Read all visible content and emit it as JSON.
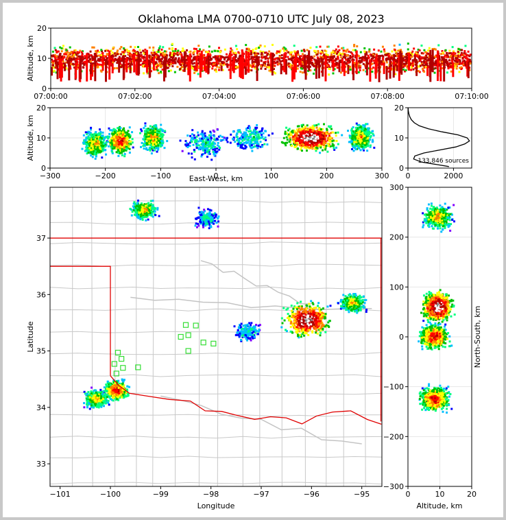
{
  "chart_data": {
    "type": "heatmap",
    "title": "Oklahoma LMA 0700-0710 UTC July 08, 2023",
    "colormap": [
      "#7f00ff",
      "#0000ff",
      "#00bfff",
      "#00ff7f",
      "#00c000",
      "#ffff00",
      "#ff8000",
      "#ff0000",
      "#b00000",
      "#ffffff",
      "#808080"
    ],
    "panels": {
      "time_height": {
        "ylabel": "Altitude, km",
        "yticks": [
          "0",
          "10",
          "20"
        ],
        "xticks": [
          "07:00:00",
          "07:02:00",
          "07:04:00",
          "07:06:00",
          "07:08:00",
          "07:10:00"
        ],
        "xlim": [
          "07:00:00",
          "07:10:00"
        ],
        "ylim": [
          0,
          20
        ]
      },
      "ew_altitude": {
        "xlabel": "East-West, km",
        "ylabel": "Altitude, km",
        "xticks": [
          "−300",
          "−200",
          "−100",
          "0",
          "100",
          "200",
          "300"
        ],
        "yticks": [
          "0",
          "10",
          "20"
        ],
        "xlim": [
          -300,
          300
        ],
        "ylim": [
          0,
          20
        ],
        "clusters": [
          {
            "x": -220,
            "z": 8,
            "intensity": "medium"
          },
          {
            "x": -175,
            "z": 9,
            "intensity": "high"
          },
          {
            "x": -115,
            "z": 10,
            "intensity": "medium"
          },
          {
            "x": -20,
            "z": 8,
            "intensity": "low"
          },
          {
            "x": 60,
            "z": 10,
            "intensity": "low"
          },
          {
            "x": 170,
            "z": 10,
            "intensity": "max"
          },
          {
            "x": 260,
            "z": 10,
            "intensity": "medium"
          }
        ]
      },
      "altitude_histogram": {
        "annotation": "133,846 sources",
        "xticks": [
          "0",
          "2000"
        ],
        "yticks": [
          "0",
          "10",
          "20"
        ],
        "xlim": [
          0,
          2800
        ],
        "ylim": [
          0,
          20
        ],
        "profile": [
          {
            "z": 0.5,
            "count": 1800
          },
          {
            "z": 2,
            "count": 600
          },
          {
            "z": 3,
            "count": 250
          },
          {
            "z": 4,
            "count": 300
          },
          {
            "z": 5,
            "count": 700
          },
          {
            "z": 6,
            "count": 1400
          },
          {
            "z": 7,
            "count": 2100
          },
          {
            "z": 8,
            "count": 2500
          },
          {
            "z": 9,
            "count": 2700
          },
          {
            "z": 10,
            "count": 2600
          },
          {
            "z": 11,
            "count": 2200
          },
          {
            "z": 12,
            "count": 1500
          },
          {
            "z": 13,
            "count": 900
          },
          {
            "z": 14,
            "count": 500
          },
          {
            "z": 15,
            "count": 280
          },
          {
            "z": 16,
            "count": 150
          },
          {
            "z": 17,
            "count": 80
          },
          {
            "z": 18,
            "count": 40
          },
          {
            "z": 19,
            "count": 15
          },
          {
            "z": 20,
            "count": 5
          }
        ]
      },
      "plan_view": {
        "xlabel": "Longitude",
        "ylabel": "Latitude",
        "xticks": [
          "−101",
          "−100",
          "−99",
          "−98",
          "−97",
          "−96",
          "−95"
        ],
        "yticks": [
          "33",
          "34",
          "35",
          "36",
          "37"
        ],
        "xlim": [
          -101.2,
          -94.6
        ],
        "ylim": [
          32.6,
          37.9
        ],
        "stations": [
          [
            -99.85,
            34.97
          ],
          [
            -99.78,
            34.86
          ],
          [
            -99.92,
            34.77
          ],
          [
            -99.75,
            34.7
          ],
          [
            -99.88,
            34.6
          ],
          [
            -99.45,
            34.71
          ],
          [
            -98.5,
            35.46
          ],
          [
            -98.3,
            35.45
          ],
          [
            -98.45,
            35.28
          ],
          [
            -98.6,
            35.25
          ],
          [
            -98.15,
            35.15
          ],
          [
            -97.95,
            35.13
          ],
          [
            -98.45,
            35.0
          ]
        ],
        "clusters": [
          {
            "lon": -99.35,
            "lat": 37.5,
            "intensity": "medium"
          },
          {
            "lon": -98.1,
            "lat": 37.35,
            "intensity": "low"
          },
          {
            "lon": -96.1,
            "lat": 35.55,
            "intensity": "max"
          },
          {
            "lon": -95.2,
            "lat": 35.85,
            "intensity": "medium"
          },
          {
            "lon": -97.3,
            "lat": 35.35,
            "intensity": "low"
          },
          {
            "lon": -100.3,
            "lat": 34.15,
            "intensity": "medium"
          },
          {
            "lon": -99.9,
            "lat": 34.3,
            "intensity": "high"
          }
        ]
      },
      "ns_altitude": {
        "xlabel": "Altitude, km",
        "ylabel": "North-South, km",
        "xticks": [
          "0",
          "10",
          "20"
        ],
        "yticks": [
          "−300",
          "−200",
          "−100",
          "0",
          "100",
          "200",
          "300"
        ],
        "xlim": [
          0,
          20
        ],
        "ylim": [
          -300,
          300
        ],
        "clusters": [
          {
            "y": 240,
            "z": 9,
            "intensity": "medium"
          },
          {
            "y": 60,
            "z": 9,
            "intensity": "max"
          },
          {
            "y": 0,
            "z": 8,
            "intensity": "high"
          },
          {
            "y": -125,
            "z": 8,
            "intensity": "high"
          }
        ]
      }
    }
  }
}
